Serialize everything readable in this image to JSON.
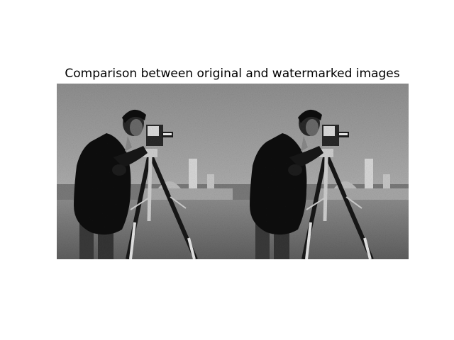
{
  "figure": {
    "title": "Comparison between original and watermarked images",
    "panels": [
      {
        "name": "original-image",
        "icon": "cameraman-photo"
      },
      {
        "name": "watermarked-image",
        "icon": "cameraman-photo"
      }
    ]
  },
  "colors": {
    "background": "#ffffff",
    "sky": "#9a9a9a",
    "grass": "#6f6f6f",
    "coat": "#121212"
  }
}
